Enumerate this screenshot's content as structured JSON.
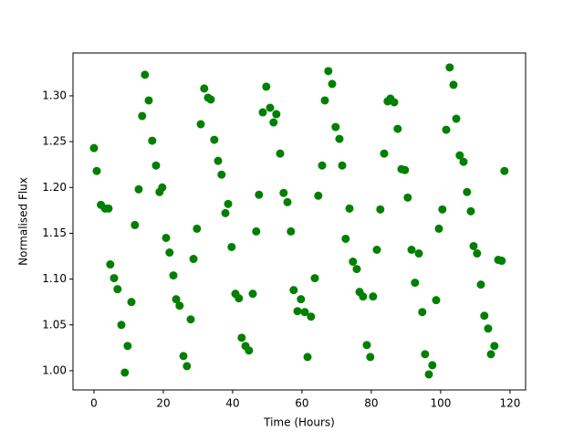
{
  "chart_data": {
    "type": "scatter",
    "xlabel": "Time (Hours)",
    "ylabel": "Normalised Flux",
    "color": "#008000",
    "grid": false,
    "xlim": [
      -6.05,
      124.5
    ],
    "ylim": [
      0.979,
      1.3468
    ],
    "xticks": [
      0,
      20,
      40,
      60,
      80,
      100,
      120
    ],
    "yticks": [
      {
        "value": 1,
        "label": "1.00"
      },
      1.05,
      {
        "value": 1.1,
        "label": "1.10"
      },
      1.15,
      {
        "value": 1.2,
        "label": "1.20"
      },
      1.25,
      {
        "value": 1.3,
        "label": "1.30"
      }
    ],
    "x": [
      0,
      0.8,
      2,
      3.2,
      4.2,
      4.7,
      5.8,
      6.8,
      7.9,
      8.9,
      9.7,
      10.8,
      11.8,
      12.9,
      13.9,
      14.7,
      15.8,
      16.8,
      17.9,
      18.9,
      19.7,
      20.8,
      21.8,
      22.9,
      23.7,
      24.7,
      25.8,
      26.8,
      27.9,
      28.7,
      29.7,
      30.8,
      31.8,
      32.9,
      33.7,
      34.7,
      35.8,
      36.8,
      37.9,
      38.7,
      39.7,
      40.8,
      41.8,
      42.6,
      43.7,
      44.7,
      45.8,
      46.8,
      47.6,
      48.7,
      49.7,
      50.8,
      51.8,
      52.6,
      53.7,
      54.7,
      55.8,
      56.8,
      57.6,
      58.7,
      59.7,
      60.8,
      61.6,
      62.6,
      63.7,
      64.7,
      65.8,
      66.6,
      67.6,
      68.7,
      69.7,
      70.8,
      71.6,
      72.6,
      73.7,
      74.7,
      75.8,
      76.6,
      77.6,
      78.7,
      79.7,
      80.5,
      81.6,
      82.6,
      83.7,
      84.7,
      85.5,
      86.6,
      87.6,
      88.7,
      89.7,
      90.5,
      91.6,
      92.6,
      93.7,
      94.7,
      95.5,
      96.6,
      97.6,
      98.7,
      99.5,
      100.5,
      101.6,
      102.6,
      103.7,
      104.5,
      105.5,
      106.6,
      107.6,
      108.7,
      109.5,
      110.5,
      111.6,
      112.6,
      113.7,
      114.5,
      115.5,
      116.6,
      117.6,
      118.4
    ],
    "values": [
      1.243,
      1.218,
      1.181,
      1.177,
      1.177,
      1.116,
      1.101,
      1.089,
      1.05,
      0.998,
      1.027,
      1.075,
      1.159,
      1.198,
      1.278,
      1.323,
      1.295,
      1.251,
      1.224,
      1.195,
      1.2,
      1.145,
      1.129,
      1.104,
      1.078,
      1.071,
      1.016,
      1.005,
      1.056,
      1.122,
      1.155,
      1.269,
      1.308,
      1.298,
      1.296,
      1.252,
      1.229,
      1.214,
      1.172,
      1.182,
      1.135,
      1.084,
      1.079,
      1.036,
      1.027,
      1.022,
      1.084,
      1.152,
      1.192,
      1.282,
      1.31,
      1.287,
      1.271,
      1.28,
      1.237,
      1.194,
      1.184,
      1.152,
      1.088,
      1.065,
      1.078,
      1.064,
      1.015,
      1.059,
      1.101,
      1.191,
      1.224,
      1.295,
      1.327,
      1.313,
      1.266,
      1.253,
      1.224,
      1.144,
      1.177,
      1.119,
      1.111,
      1.086,
      1.081,
      1.028,
      1.015,
      1.081,
      1.132,
      1.176,
      1.237,
      1.294,
      1.297,
      1.293,
      1.264,
      1.22,
      1.219,
      1.189,
      1.132,
      1.096,
      1.128,
      1.064,
      1.018,
      0.996,
      1.006,
      1.077,
      1.155,
      1.176,
      1.263,
      1.331,
      1.312,
      1.275,
      1.235,
      1.228,
      1.195,
      1.174,
      1.136,
      1.128,
      1.094,
      1.06,
      1.046,
      1.018,
      1.027,
      1.121,
      1.12,
      1.218
    ]
  }
}
